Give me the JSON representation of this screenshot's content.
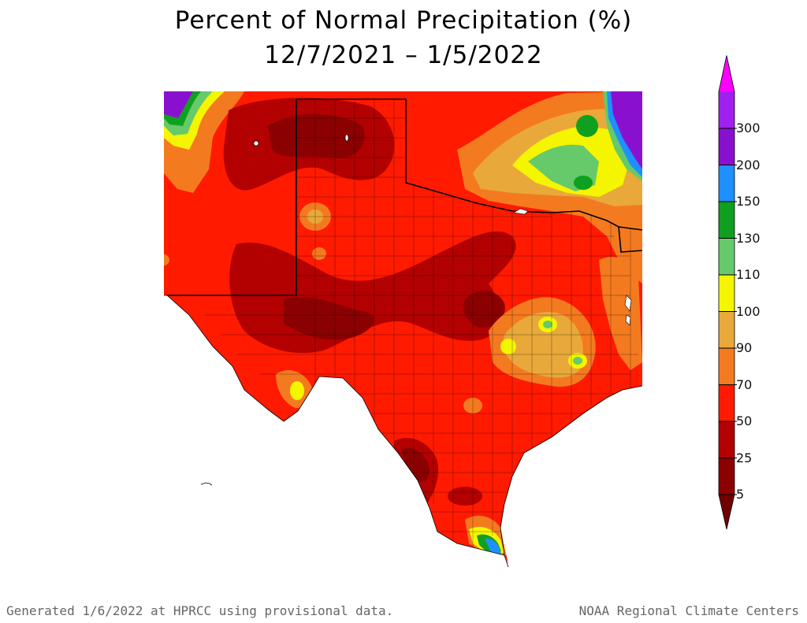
{
  "title": "Percent of Normal Precipitation (%)",
  "date_range": "12/7/2021 – 1/5/2022",
  "footer": {
    "left": "Generated 1/6/2022 at HPRCC using provisional data.",
    "right": "NOAA Regional Climate Centers"
  },
  "legend": [
    {
      "label": "5",
      "color": "#8b0000"
    },
    {
      "label": "25",
      "color": "#b30000"
    },
    {
      "label": "50",
      "color": "#ff1a00"
    },
    {
      "label": "70",
      "color": "#f47a20"
    },
    {
      "label": "90",
      "color": "#e8a93a"
    },
    {
      "label": "100",
      "color": "#f5f500"
    },
    {
      "label": "110",
      "color": "#66c96a"
    },
    {
      "label": "130",
      "color": "#10a020"
    },
    {
      "label": "150",
      "color": "#1e90ff"
    },
    {
      "label": "200",
      "color": "#8a10d0"
    },
    {
      "label": "300",
      "color": "#a020f0"
    }
  ],
  "legend_top_color": "#ff00ff",
  "legend_bottom_color": "#700000"
}
